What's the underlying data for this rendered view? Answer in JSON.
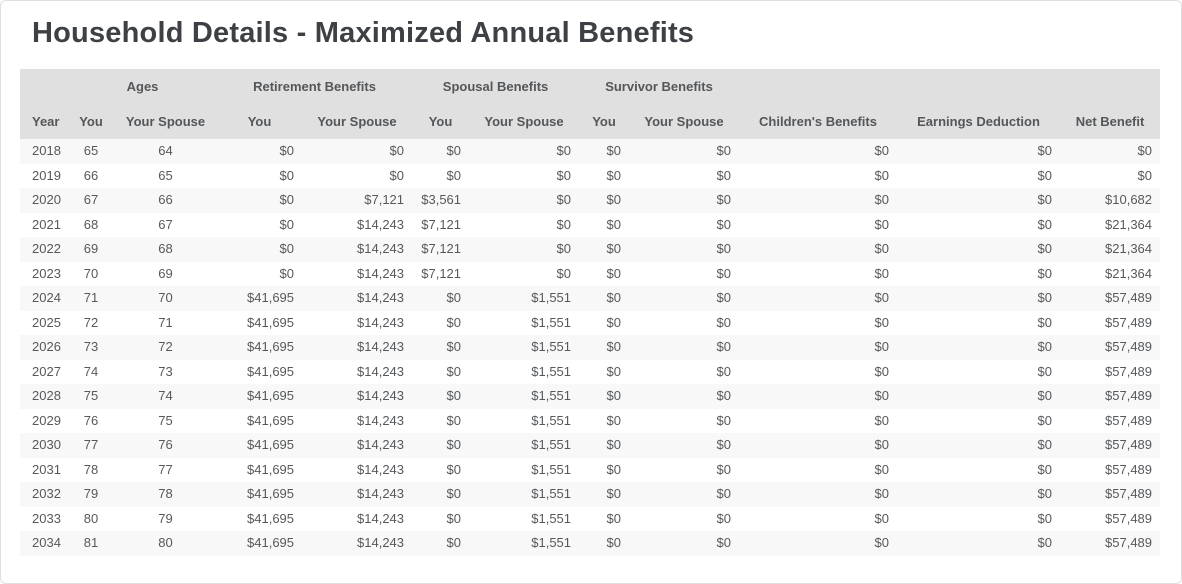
{
  "title": "Household Details - Maximized Annual Benefits",
  "table": {
    "group_headers": [
      {
        "label": "",
        "span": 1
      },
      {
        "label": "Ages",
        "span": 2
      },
      {
        "label": "Retirement Benefits",
        "span": 2
      },
      {
        "label": "Spousal Benefits",
        "span": 2
      },
      {
        "label": "Survivor Benefits",
        "span": 2
      },
      {
        "label": "",
        "span": 1
      },
      {
        "label": "",
        "span": 1
      },
      {
        "label": "",
        "span": 1
      }
    ],
    "columns": [
      "Year",
      "You",
      "Your Spouse",
      "You",
      "Your Spouse",
      "You",
      "Your Spouse",
      "You",
      "Your Spouse",
      "Children's Benefits",
      "Earnings Deduction",
      "Net Benefit"
    ],
    "rows": [
      [
        "2018",
        "65",
        "64",
        "$0",
        "$0",
        "$0",
        "$0",
        "$0",
        "$0",
        "$0",
        "$0",
        "$0"
      ],
      [
        "2019",
        "66",
        "65",
        "$0",
        "$0",
        "$0",
        "$0",
        "$0",
        "$0",
        "$0",
        "$0",
        "$0"
      ],
      [
        "2020",
        "67",
        "66",
        "$0",
        "$7,121",
        "$3,561",
        "$0",
        "$0",
        "$0",
        "$0",
        "$0",
        "$10,682"
      ],
      [
        "2021",
        "68",
        "67",
        "$0",
        "$14,243",
        "$7,121",
        "$0",
        "$0",
        "$0",
        "$0",
        "$0",
        "$21,364"
      ],
      [
        "2022",
        "69",
        "68",
        "$0",
        "$14,243",
        "$7,121",
        "$0",
        "$0",
        "$0",
        "$0",
        "$0",
        "$21,364"
      ],
      [
        "2023",
        "70",
        "69",
        "$0",
        "$14,243",
        "$7,121",
        "$0",
        "$0",
        "$0",
        "$0",
        "$0",
        "$21,364"
      ],
      [
        "2024",
        "71",
        "70",
        "$41,695",
        "$14,243",
        "$0",
        "$1,551",
        "$0",
        "$0",
        "$0",
        "$0",
        "$57,489"
      ],
      [
        "2025",
        "72",
        "71",
        "$41,695",
        "$14,243",
        "$0",
        "$1,551",
        "$0",
        "$0",
        "$0",
        "$0",
        "$57,489"
      ],
      [
        "2026",
        "73",
        "72",
        "$41,695",
        "$14,243",
        "$0",
        "$1,551",
        "$0",
        "$0",
        "$0",
        "$0",
        "$57,489"
      ],
      [
        "2027",
        "74",
        "73",
        "$41,695",
        "$14,243",
        "$0",
        "$1,551",
        "$0",
        "$0",
        "$0",
        "$0",
        "$57,489"
      ],
      [
        "2028",
        "75",
        "74",
        "$41,695",
        "$14,243",
        "$0",
        "$1,551",
        "$0",
        "$0",
        "$0",
        "$0",
        "$57,489"
      ],
      [
        "2029",
        "76",
        "75",
        "$41,695",
        "$14,243",
        "$0",
        "$1,551",
        "$0",
        "$0",
        "$0",
        "$0",
        "$57,489"
      ],
      [
        "2030",
        "77",
        "76",
        "$41,695",
        "$14,243",
        "$0",
        "$1,551",
        "$0",
        "$0",
        "$0",
        "$0",
        "$57,489"
      ],
      [
        "2031",
        "78",
        "77",
        "$41,695",
        "$14,243",
        "$0",
        "$1,551",
        "$0",
        "$0",
        "$0",
        "$0",
        "$57,489"
      ],
      [
        "2032",
        "79",
        "78",
        "$41,695",
        "$14,243",
        "$0",
        "$1,551",
        "$0",
        "$0",
        "$0",
        "$0",
        "$57,489"
      ],
      [
        "2033",
        "80",
        "79",
        "$41,695",
        "$14,243",
        "$0",
        "$1,551",
        "$0",
        "$0",
        "$0",
        "$0",
        "$57,489"
      ],
      [
        "2034",
        "81",
        "80",
        "$41,695",
        "$14,243",
        "$0",
        "$1,551",
        "$0",
        "$0",
        "$0",
        "$0",
        "$57,489"
      ]
    ]
  },
  "colors": {
    "header_band": "#e0e0e0",
    "row_stripe": "#f8f8f8",
    "title_text": "#3d4145",
    "body_text": "#56595c"
  }
}
